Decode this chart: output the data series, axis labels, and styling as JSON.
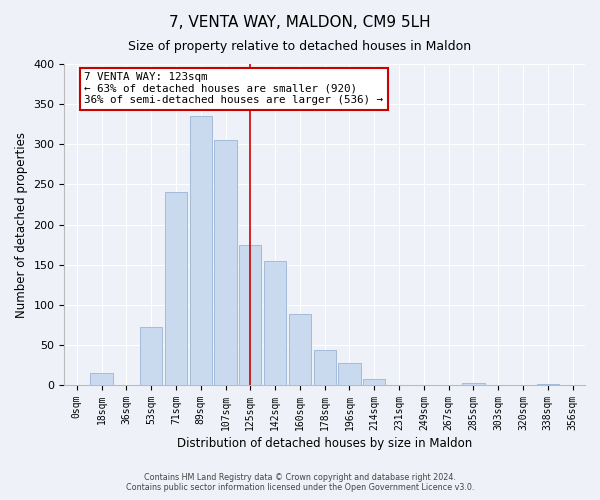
{
  "title": "7, VENTA WAY, MALDON, CM9 5LH",
  "subtitle": "Size of property relative to detached houses in Maldon",
  "xlabel": "Distribution of detached houses by size in Maldon",
  "ylabel": "Number of detached properties",
  "bar_labels": [
    "0sqm",
    "18sqm",
    "36sqm",
    "53sqm",
    "71sqm",
    "89sqm",
    "107sqm",
    "125sqm",
    "142sqm",
    "160sqm",
    "178sqm",
    "196sqm",
    "214sqm",
    "231sqm",
    "249sqm",
    "267sqm",
    "285sqm",
    "303sqm",
    "320sqm",
    "338sqm",
    "356sqm"
  ],
  "bar_values": [
    0,
    15,
    0,
    72,
    240,
    335,
    305,
    175,
    155,
    88,
    44,
    28,
    7,
    0,
    0,
    0,
    2,
    0,
    0,
    1,
    0
  ],
  "bar_color": "#c9d9ee",
  "bar_edge_color": "#9ab5d5",
  "vline_x_index": 7,
  "vline_color": "#cc0000",
  "ylim": [
    0,
    400
  ],
  "yticks": [
    0,
    50,
    100,
    150,
    200,
    250,
    300,
    350,
    400
  ],
  "annotation_title": "7 VENTA WAY: 123sqm",
  "annotation_line1": "← 63% of detached houses are smaller (920)",
  "annotation_line2": "36% of semi-detached houses are larger (536) →",
  "annotation_box_color": "#ffffff",
  "annotation_box_edge": "#cc0000",
  "footer1": "Contains HM Land Registry data © Crown copyright and database right 2024.",
  "footer2": "Contains public sector information licensed under the Open Government Licence v3.0.",
  "background_color": "#eef2f8",
  "grid_color": "#ffffff",
  "title_fontsize": 11,
  "subtitle_fontsize": 9
}
